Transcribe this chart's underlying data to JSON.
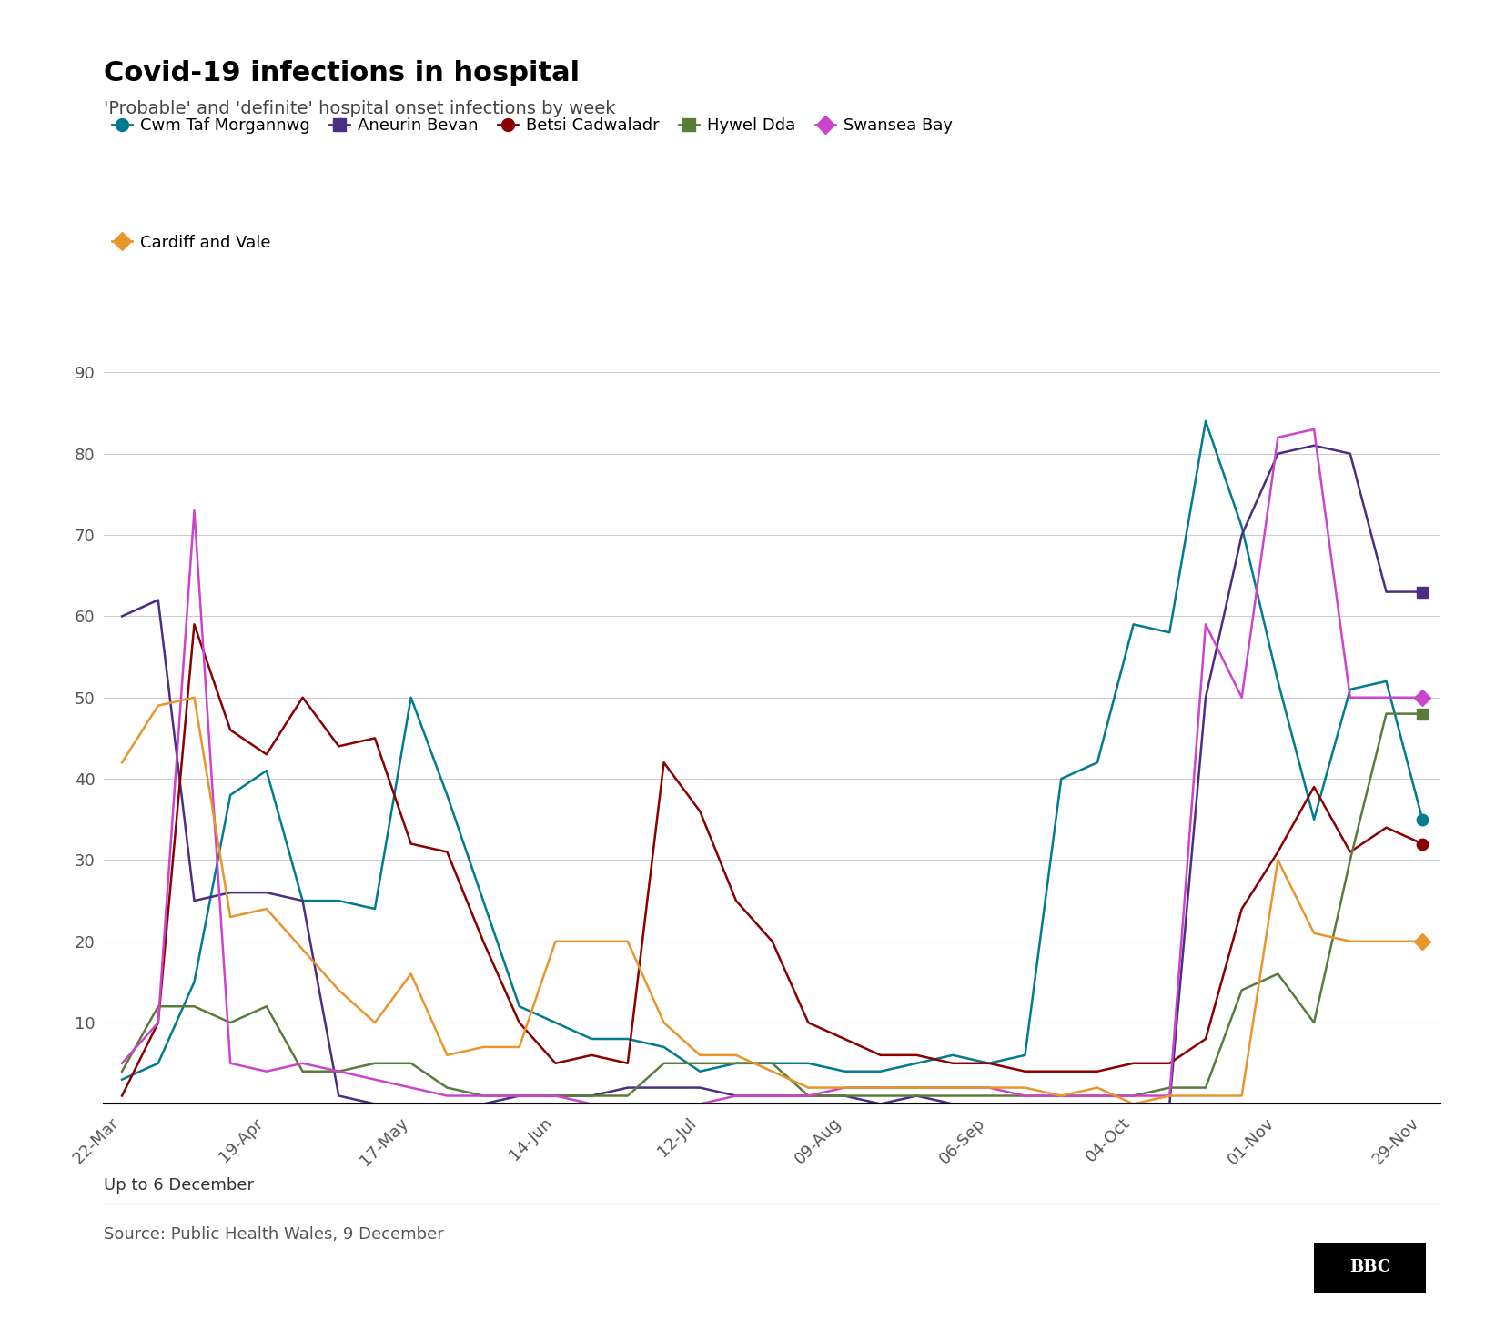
{
  "title": "Covid-19 infections in hospital",
  "subtitle": "'Probable' and 'definite' hospital onset infections by week",
  "caption": "Up to 6 December",
  "source": "Source: Public Health Wales, 9 December",
  "x_labels": [
    "22-Mar",
    "19-Apr",
    "17-May",
    "14-Jun",
    "12-Jul",
    "09-Aug",
    "06-Sep",
    "04-Oct",
    "01-Nov",
    "29-Nov"
  ],
  "ylim": [
    0,
    90
  ],
  "yticks": [
    0,
    10,
    20,
    30,
    40,
    50,
    60,
    70,
    80,
    90
  ],
  "series": [
    {
      "name": "Cwm Taf Morgannwg",
      "color": "#007B8F",
      "marker": "o",
      "values": [
        3,
        5,
        15,
        38,
        41,
        25,
        25,
        24,
        50,
        38,
        25,
        12,
        10,
        8,
        8,
        7,
        4,
        5,
        5,
        5,
        4,
        4,
        5,
        6,
        5,
        6,
        40,
        42,
        59,
        58,
        84,
        71,
        52,
        35,
        51,
        52,
        35
      ]
    },
    {
      "name": "Aneurin Bevan",
      "color": "#4B2E83",
      "marker": "s",
      "values": [
        60,
        62,
        25,
        26,
        26,
        25,
        1,
        0,
        0,
        0,
        0,
        1,
        1,
        1,
        2,
        2,
        2,
        1,
        1,
        1,
        1,
        0,
        1,
        0,
        0,
        0,
        0,
        0,
        0,
        0,
        50,
        70,
        80,
        81,
        80,
        63,
        63
      ]
    },
    {
      "name": "Betsi Cadwaladr",
      "color": "#8B0000",
      "marker": "o",
      "values": [
        1,
        10,
        59,
        46,
        43,
        50,
        44,
        45,
        32,
        31,
        20,
        10,
        5,
        6,
        5,
        42,
        36,
        25,
        20,
        10,
        8,
        6,
        6,
        5,
        5,
        4,
        4,
        4,
        5,
        5,
        8,
        24,
        31,
        39,
        31,
        34,
        32
      ]
    },
    {
      "name": "Hywel Dda",
      "color": "#5B7B3A",
      "marker": "s",
      "values": [
        4,
        12,
        12,
        10,
        12,
        4,
        4,
        5,
        5,
        2,
        1,
        1,
        1,
        1,
        1,
        5,
        5,
        5,
        5,
        1,
        1,
        1,
        1,
        1,
        1,
        1,
        1,
        1,
        1,
        2,
        2,
        14,
        16,
        10,
        30,
        48,
        48
      ]
    },
    {
      "name": "Swansea Bay",
      "color": "#CC44CC",
      "marker": "D",
      "values": [
        5,
        10,
        73,
        5,
        4,
        5,
        4,
        3,
        2,
        1,
        1,
        1,
        1,
        0,
        0,
        0,
        0,
        1,
        1,
        1,
        2,
        2,
        2,
        2,
        2,
        1,
        1,
        1,
        1,
        1,
        59,
        50,
        82,
        83,
        50,
        50,
        50
      ]
    },
    {
      "name": "Cardiff and Vale",
      "color": "#E8952A",
      "marker": "D",
      "values": [
        42,
        49,
        50,
        23,
        24,
        19,
        14,
        10,
        16,
        6,
        7,
        7,
        20,
        20,
        20,
        10,
        6,
        6,
        4,
        2,
        2,
        2,
        2,
        2,
        2,
        2,
        1,
        2,
        0,
        1,
        1,
        1,
        30,
        21,
        20,
        20,
        20
      ]
    }
  ]
}
